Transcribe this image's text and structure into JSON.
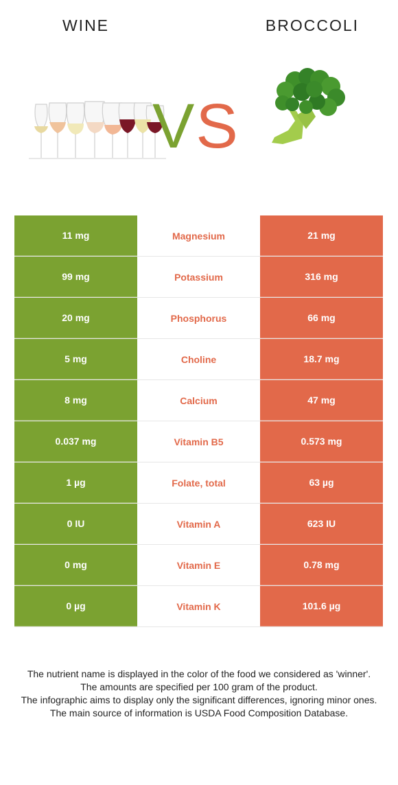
{
  "header": {
    "left_title": "WINE",
    "right_title": "BROCCOLI"
  },
  "vs": {
    "v": "V",
    "s": "S"
  },
  "colors": {
    "wine": "#7ba231",
    "broccoli": "#e2694a",
    "winner_text": "#e2694a"
  },
  "nutrients": [
    {
      "name": "Magnesium",
      "left": "11 mg",
      "right": "21 mg"
    },
    {
      "name": "Potassium",
      "left": "99 mg",
      "right": "316 mg"
    },
    {
      "name": "Phosphorus",
      "left": "20 mg",
      "right": "66 mg"
    },
    {
      "name": "Choline",
      "left": "5 mg",
      "right": "18.7 mg"
    },
    {
      "name": "Calcium",
      "left": "8 mg",
      "right": "47 mg"
    },
    {
      "name": "Vitamin B5",
      "left": "0.037 mg",
      "right": "0.573 mg"
    },
    {
      "name": "Folate, total",
      "left": "1 µg",
      "right": "63 µg"
    },
    {
      "name": "Vitamin A",
      "left": "0 IU",
      "right": "623 IU"
    },
    {
      "name": "Vitamin E",
      "left": "0 mg",
      "right": "0.78 mg"
    },
    {
      "name": "Vitamin K",
      "left": "0 µg",
      "right": "101.6 µg"
    }
  ],
  "notes": [
    "The nutrient name is displayed in the color of the food we considered as 'winner'.",
    "The amounts are specified per 100 gram of the product.",
    "The infographic aims to display only the significant differences, ignoring minor ones.",
    "The main source of information is USDA Food Composition Database."
  ]
}
